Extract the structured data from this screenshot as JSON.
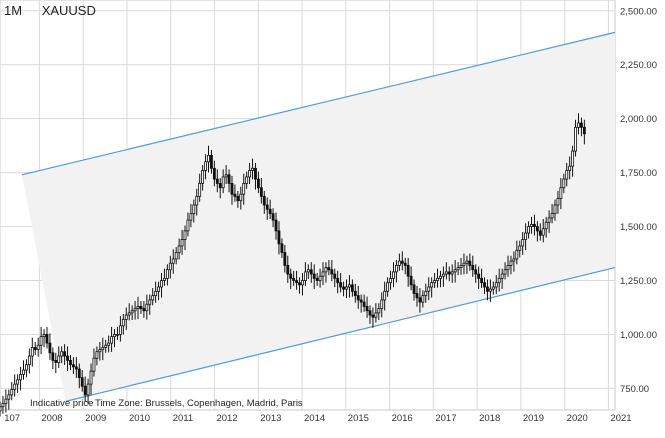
{
  "header": {
    "period": "1M",
    "symbol": "XAUUSD"
  },
  "footer": {
    "price_note": "Indicative price",
    "timezone": "Time Zone: Brussels, Copenhagen, Madrid, Paris"
  },
  "colors": {
    "up": "#ffffff",
    "down": "#111111",
    "wick": "#111111",
    "channel_line": "#4f9ad6",
    "channel_fill": "#f2f2f2",
    "grid": "#d9d9d9"
  },
  "chart_data": {
    "type": "candlestick",
    "title": "",
    "interval": "1M",
    "ylim": [
      650,
      2550
    ],
    "xlim": [
      2007.1,
      2021.15
    ],
    "y_ticks": [
      "750.00",
      "1,000.00",
      "1,250.00",
      "1,500.00",
      "1,750.00",
      "2,000.00",
      "2,250.00",
      "2,500.00"
    ],
    "x_ticks": [
      "107",
      "2008",
      "2009",
      "2010",
      "2011",
      "2012",
      "2013",
      "2014",
      "2015",
      "2016",
      "2017",
      "2018",
      "2019",
      "2020",
      "2021"
    ],
    "grid": true,
    "channel": {
      "upper": [
        [
          2007.6,
          1740
        ],
        [
          2021.15,
          2400
        ]
      ],
      "lower": [
        [
          2008.6,
          690
        ],
        [
          2021.15,
          1310
        ]
      ]
    },
    "close": [
      665,
      680,
      700,
      720,
      745,
      770,
      790,
      815,
      835,
      860,
      900,
      940,
      930,
      950,
      990,
      1000,
      960,
      915,
      880,
      870,
      900,
      920,
      900,
      880,
      860,
      850,
      840,
      800,
      760,
      720,
      770,
      830,
      890,
      920,
      930,
      940,
      950,
      960,
      990,
      1000,
      1000,
      1040,
      1070,
      1090,
      1100,
      1110,
      1120,
      1130,
      1120,
      1110,
      1140,
      1160,
      1180,
      1200,
      1220,
      1250,
      1260,
      1300,
      1330,
      1350,
      1380,
      1410,
      1440,
      1480,
      1530,
      1560,
      1600,
      1640,
      1700,
      1760,
      1800,
      1830,
      1770,
      1720,
      1700,
      1680,
      1730,
      1740,
      1700,
      1650,
      1640,
      1620,
      1650,
      1700,
      1730,
      1760,
      1770,
      1720,
      1680,
      1640,
      1600,
      1580,
      1560,
      1530,
      1480,
      1420,
      1380,
      1320,
      1280,
      1260,
      1250,
      1240,
      1230,
      1250,
      1290,
      1300,
      1280,
      1260,
      1250,
      1270,
      1290,
      1310,
      1300,
      1280,
      1260,
      1240,
      1220,
      1210,
      1220,
      1230,
      1200,
      1180,
      1160,
      1150,
      1130,
      1110,
      1090,
      1080,
      1100,
      1120,
      1160,
      1200,
      1240,
      1260,
      1290,
      1320,
      1340,
      1330,
      1320,
      1270,
      1230,
      1190,
      1170,
      1150,
      1180,
      1200,
      1220,
      1240,
      1250,
      1260,
      1270,
      1280,
      1290,
      1280,
      1290,
      1300,
      1310,
      1320,
      1330,
      1340,
      1320,
      1300,
      1280,
      1260,
      1240,
      1220,
      1200,
      1210,
      1220,
      1240,
      1260,
      1280,
      1300,
      1320,
      1340,
      1350,
      1390,
      1410,
      1440,
      1470,
      1500,
      1510,
      1500,
      1480,
      1460,
      1490,
      1520,
      1540,
      1560,
      1600,
      1630,
      1680,
      1720,
      1760,
      1780,
      1850,
      1960,
      1980,
      1960,
      1930
    ]
  }
}
